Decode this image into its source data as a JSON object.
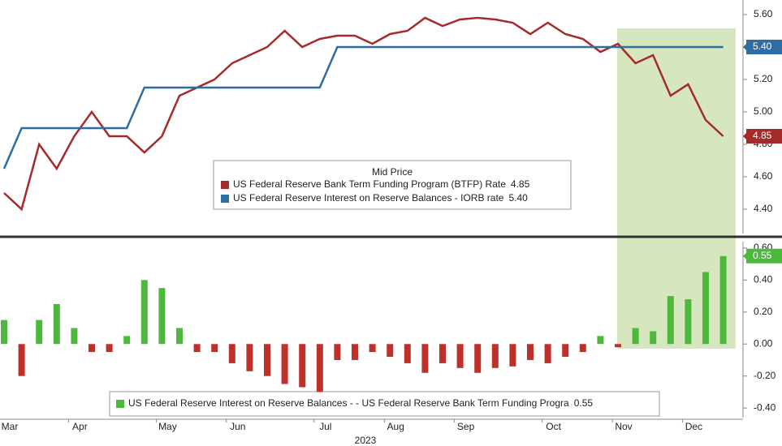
{
  "chart_data": [
    {
      "type": "line",
      "legend_title": "Mid Price",
      "ylim": [
        4.25,
        5.68
      ],
      "yticks": [
        {
          "value": 4.4,
          "label": "4.40"
        },
        {
          "value": 4.6,
          "label": "4.60"
        },
        {
          "value": 4.8,
          "label": "4.80"
        },
        {
          "value": 5.0,
          "label": "5.00"
        },
        {
          "value": 5.2,
          "label": "5.20"
        },
        {
          "value": 5.4,
          "label": "5.40"
        },
        {
          "value": 5.6,
          "label": "5.60"
        }
      ],
      "series": [
        {
          "name": "US Federal Reserve Bank Term Funding Program (BTFP) Rate",
          "color": "#a52a2a",
          "values": [
            4.5,
            4.4,
            4.8,
            4.65,
            4.85,
            5.0,
            4.85,
            4.85,
            4.75,
            4.85,
            5.1,
            5.15,
            5.2,
            5.3,
            5.35,
            5.4,
            5.5,
            5.4,
            5.45,
            5.47,
            5.47,
            5.42,
            5.48,
            5.5,
            5.58,
            5.53,
            5.57,
            5.58,
            5.57,
            5.55,
            5.48,
            5.55,
            5.48,
            5.45,
            5.37,
            5.42,
            5.3,
            5.35,
            5.1,
            5.17,
            4.95,
            4.85
          ],
          "value_labels": [
            null,
            null,
            null,
            null,
            null,
            null,
            null,
            null,
            null,
            null,
            null,
            null,
            null,
            null,
            null,
            null,
            null,
            null,
            null,
            null,
            null,
            null,
            null,
            null,
            null,
            null,
            null,
            null,
            null,
            null,
            null,
            null,
            null,
            null,
            null,
            null,
            null,
            null,
            null,
            null,
            null,
            "4.85"
          ]
        },
        {
          "name": "US Federal Reserve Interest on Reserve Balances - IORB rate",
          "color": "#2e6da4",
          "values": [
            4.65,
            4.9,
            4.9,
            4.9,
            4.9,
            4.9,
            4.9,
            4.9,
            5.15,
            5.15,
            5.15,
            5.15,
            5.15,
            5.15,
            5.15,
            5.15,
            5.15,
            5.15,
            5.15,
            5.4,
            5.4,
            5.4,
            5.4,
            5.4,
            5.4,
            5.4,
            5.4,
            5.4,
            5.4,
            5.4,
            5.4,
            5.4,
            5.4,
            5.4,
            5.4,
            5.4,
            5.4,
            5.4,
            5.4,
            5.4,
            5.4,
            5.4
          ],
          "value_labels": [
            null,
            null,
            null,
            null,
            null,
            null,
            null,
            null,
            null,
            null,
            null,
            null,
            null,
            null,
            null,
            null,
            null,
            null,
            null,
            null,
            null,
            null,
            null,
            null,
            null,
            null,
            null,
            null,
            null,
            null,
            null,
            null,
            null,
            null,
            null,
            null,
            null,
            null,
            null,
            null,
            null,
            "5.40"
          ]
        }
      ]
    },
    {
      "type": "bar",
      "xlabel": "2023",
      "categories": [
        "Mar",
        null,
        null,
        null,
        "Apr",
        null,
        null,
        null,
        null,
        "May",
        null,
        null,
        null,
        "Jun",
        null,
        null,
        null,
        null,
        "Jul",
        null,
        null,
        null,
        "Aug",
        null,
        null,
        null,
        "Sep",
        null,
        null,
        null,
        null,
        "Oct",
        null,
        null,
        null,
        "Nov",
        null,
        null,
        null,
        "Dec",
        null,
        null
      ],
      "ylim": [
        -0.46,
        0.64
      ],
      "yticks": [
        {
          "value": -0.4,
          "label": "-0.40"
        },
        {
          "value": -0.2,
          "label": "-0.20"
        },
        {
          "value": 0,
          "label": "0.00"
        },
        {
          "value": 0.2,
          "label": "0.20"
        },
        {
          "value": 0.4,
          "label": "0.40"
        },
        {
          "value": 0.6,
          "label": "0.60"
        }
      ],
      "positive_color": "#4cb83c",
      "negative_color": "#c0302b",
      "series": [
        {
          "name": "US Federal Reserve Interest on Reserve Balances - - US Federal Reserve Bank Term Funding Progra",
          "color": "#4cb83c",
          "values": [
            0.15,
            -0.2,
            0.15,
            0.25,
            0.1,
            -0.05,
            -0.05,
            0.05,
            0.4,
            0.35,
            0.1,
            -0.05,
            -0.05,
            -0.12,
            -0.17,
            -0.2,
            -0.25,
            -0.27,
            -0.3,
            -0.1,
            -0.1,
            -0.05,
            -0.08,
            -0.12,
            -0.18,
            -0.12,
            -0.15,
            -0.18,
            -0.15,
            -0.14,
            -0.1,
            -0.12,
            -0.08,
            -0.05,
            0.05,
            -0.02,
            0.1,
            0.08,
            0.3,
            0.28,
            0.45,
            0.55
          ],
          "value_labels": [
            null,
            null,
            null,
            null,
            null,
            null,
            null,
            null,
            null,
            null,
            null,
            null,
            null,
            null,
            null,
            null,
            null,
            null,
            null,
            null,
            null,
            null,
            null,
            null,
            null,
            null,
            null,
            null,
            null,
            null,
            null,
            null,
            null,
            null,
            null,
            null,
            null,
            null,
            null,
            null,
            null,
            "0.55"
          ]
        }
      ]
    }
  ]
}
